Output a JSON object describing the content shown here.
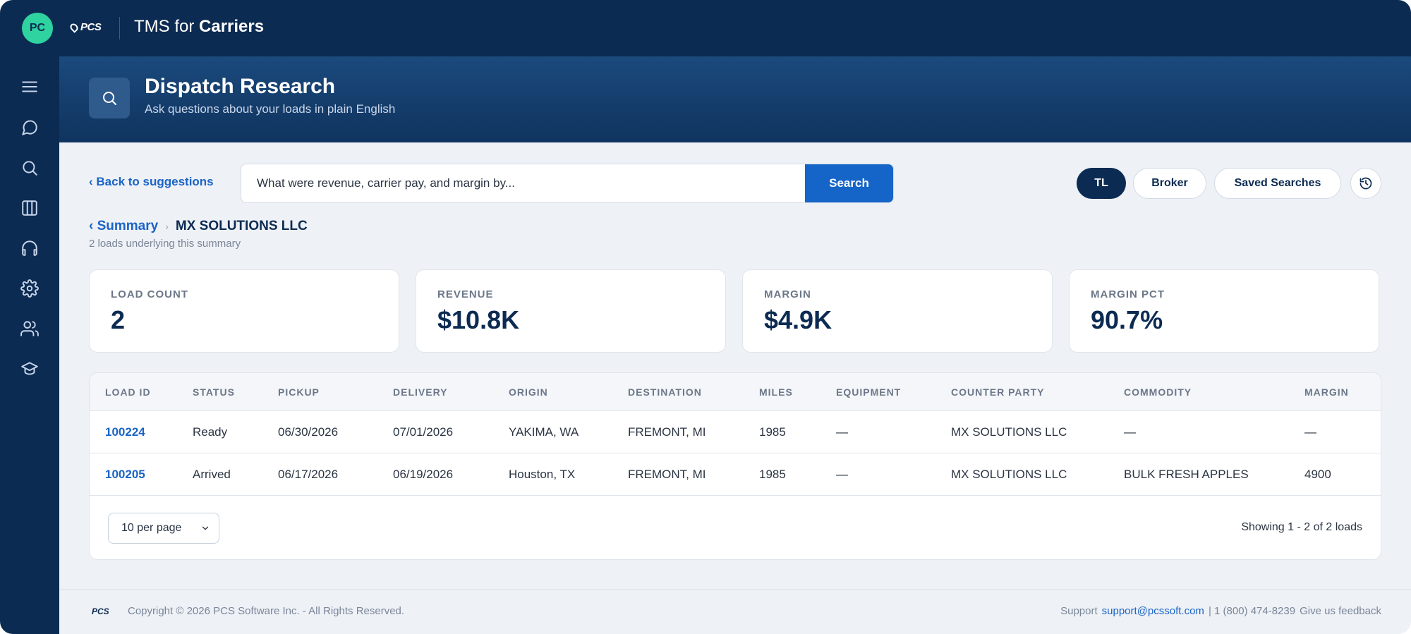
{
  "topbar": {
    "avatar_initials": "PC",
    "brand_logo": "PCS",
    "app_title_prefix": "TMS for ",
    "app_title_bold": "Carriers"
  },
  "sidebar": {
    "items": [
      {
        "icon": "menu-icon"
      },
      {
        "icon": "chat-icon"
      },
      {
        "icon": "search-icon"
      },
      {
        "icon": "columns-icon"
      },
      {
        "icon": "headset-icon"
      },
      {
        "icon": "gear-icon"
      },
      {
        "icon": "users-icon"
      },
      {
        "icon": "graduation-cap-icon"
      }
    ]
  },
  "header": {
    "title": "Dispatch Research",
    "subtitle": "Ask questions about your loads in plain English"
  },
  "toolbar": {
    "back_label": "‹  Back to suggestions",
    "search_value": "What were revenue, carrier pay, and margin by...",
    "search_button": "Search",
    "mode_tl": "TL",
    "mode_broker": "Broker",
    "saved_searches": "Saved Searches"
  },
  "breadcrumb": {
    "back": "‹ Summary",
    "separator": "›",
    "current": "MX SOLUTIONS LLC",
    "note": "2 loads underlying this summary"
  },
  "metrics": [
    {
      "label": "LOAD COUNT",
      "value": "2"
    },
    {
      "label": "REVENUE",
      "value": "$10.8K"
    },
    {
      "label": "MARGIN",
      "value": "$4.9K"
    },
    {
      "label": "MARGIN PCT",
      "value": "90.7%"
    }
  ],
  "table": {
    "headers": [
      "LOAD ID",
      "STATUS",
      "PICKUP",
      "DELIVERY",
      "ORIGIN",
      "DESTINATION",
      "MILES",
      "EQUIPMENT",
      "COUNTER PARTY",
      "COMMODITY",
      "MARGIN"
    ],
    "rows": [
      [
        "100224",
        "Ready",
        "06/30/2026",
        "07/01/2026",
        "YAKIMA, WA",
        "FREMONT, MI",
        "1985",
        "—",
        "MX SOLUTIONS LLC",
        "—",
        "—"
      ],
      [
        "100205",
        "Arrived",
        "06/17/2026",
        "06/19/2026",
        "Houston, TX",
        "FREMONT, MI",
        "1985",
        "—",
        "MX SOLUTIONS LLC",
        "BULK FRESH APPLES",
        "4900"
      ]
    ],
    "per_page": "10 per page",
    "showing": "Showing 1 - 2 of 2 loads"
  },
  "footer": {
    "logo": "PCS",
    "copyright": "Copyright © 2026 PCS Software Inc. - All Rights Reserved.",
    "support_label": "Support",
    "support_email": "support@pcssoft.com",
    "phone": "| 1 (800) 474-8239",
    "feedback": "Give us feedback"
  },
  "colors": {
    "navy": "#0c2b52",
    "accent_blue": "#1565c8",
    "link_blue": "#1a64c6",
    "avatar_green": "#2ed3a0"
  }
}
